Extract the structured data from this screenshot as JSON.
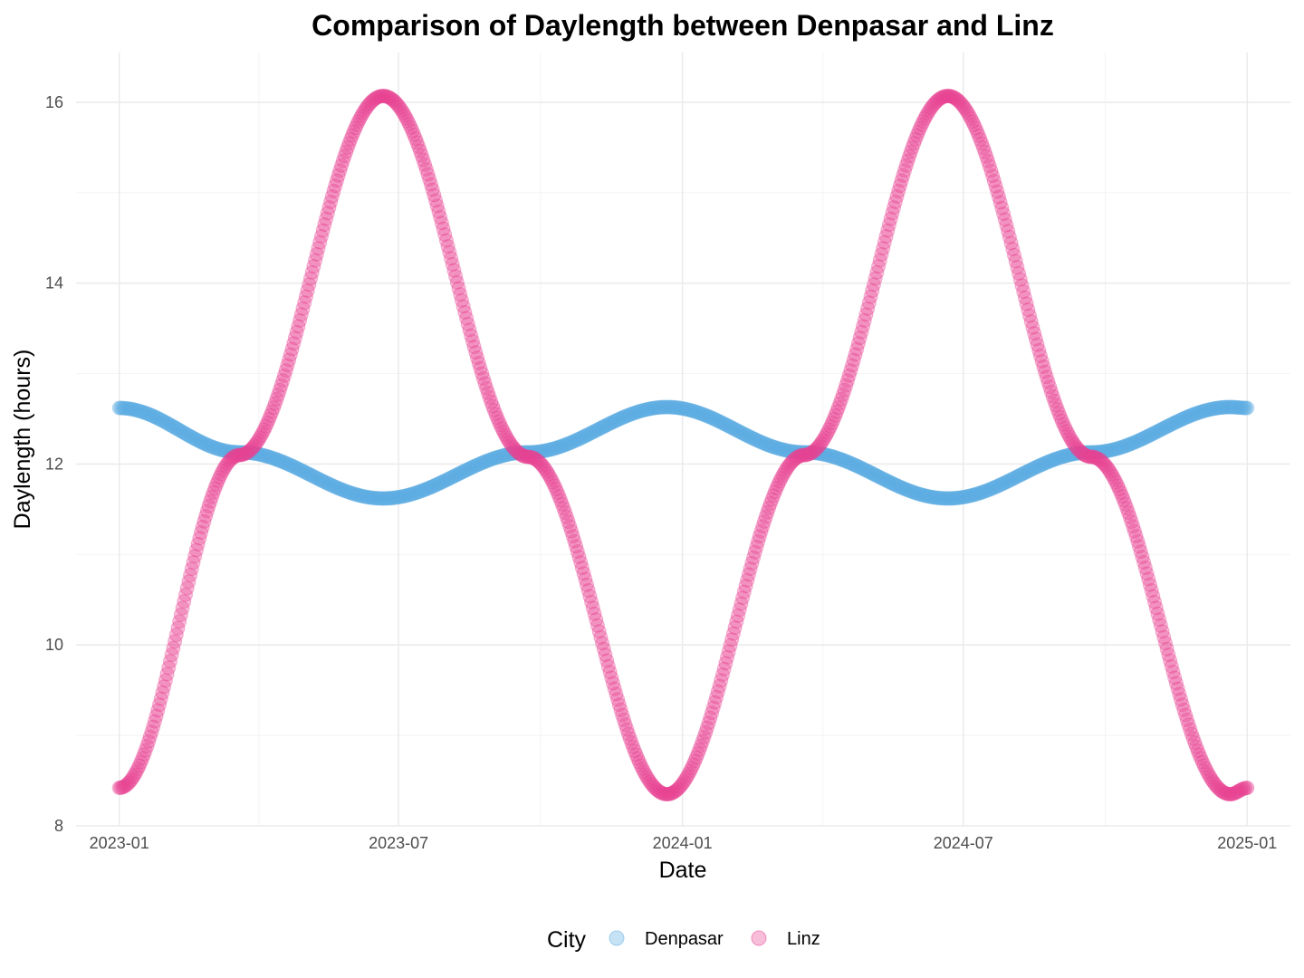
{
  "chart_data": {
    "type": "scatter",
    "title": "Comparison of Daylength between Denpasar and Linz",
    "xlabel": "Date",
    "ylabel": "Daylength (hours)",
    "x_range": [
      "2022-12-04",
      "2025-01-29"
    ],
    "ylim": [
      8,
      16.55
    ],
    "x_ticks": [
      "2023-01",
      "2023-07",
      "2024-01",
      "2024-07",
      "2025-01"
    ],
    "y_ticks": [
      8,
      10,
      12,
      14,
      16
    ],
    "grid": true,
    "legend": {
      "title": "City",
      "position": "bottom"
    },
    "x_start": "2023-01-01",
    "x_end": "2025-01-01",
    "point_interval_days": 1,
    "series": [
      {
        "name": "Denpasar",
        "color": "#5DADE2",
        "opacity": 0.35,
        "anchors": [
          {
            "date": "2023-01-01",
            "daylength": 12.62
          },
          {
            "date": "2023-03-20",
            "daylength": 12.13
          },
          {
            "date": "2023-06-21",
            "daylength": 11.62
          },
          {
            "date": "2023-09-23",
            "daylength": 12.13
          },
          {
            "date": "2023-12-22",
            "daylength": 12.63
          },
          {
            "date": "2024-03-20",
            "daylength": 12.13
          },
          {
            "date": "2024-06-21",
            "daylength": 11.62
          },
          {
            "date": "2024-09-22",
            "daylength": 12.13
          },
          {
            "date": "2024-12-21",
            "daylength": 12.63
          },
          {
            "date": "2025-01-01",
            "daylength": 12.62
          }
        ]
      },
      {
        "name": "Linz",
        "color": "#E84393",
        "opacity": 0.35,
        "anchors": [
          {
            "date": "2023-01-01",
            "daylength": 8.42
          },
          {
            "date": "2023-03-20",
            "daylength": 12.1
          },
          {
            "date": "2023-06-21",
            "daylength": 16.07
          },
          {
            "date": "2023-09-23",
            "daylength": 12.08
          },
          {
            "date": "2023-12-22",
            "daylength": 8.35
          },
          {
            "date": "2024-03-20",
            "daylength": 12.1
          },
          {
            "date": "2024-06-21",
            "daylength": 16.07
          },
          {
            "date": "2024-09-22",
            "daylength": 12.08
          },
          {
            "date": "2024-12-21",
            "daylength": 8.35
          },
          {
            "date": "2025-01-01",
            "daylength": 8.42
          }
        ]
      }
    ]
  }
}
